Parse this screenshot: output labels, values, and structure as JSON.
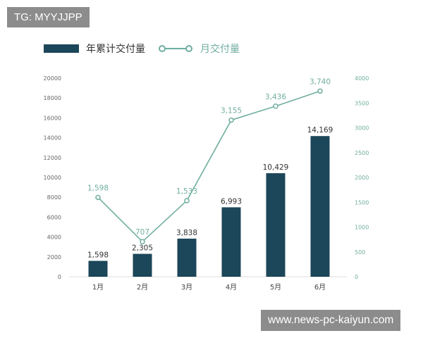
{
  "watermarks": {
    "top": "TG: MYYJJPP",
    "bottom": "www.news-pc-kaiyun.com"
  },
  "colors": {
    "bar": "#1c4659",
    "line": "#6fae9f",
    "axis_text": "#666666",
    "bar_label": "#333333"
  },
  "chart_data": {
    "type": "bar+line",
    "title": "",
    "categories": [
      "1月",
      "2月",
      "3月",
      "4月",
      "5月",
      "6月"
    ],
    "series": [
      {
        "name": "年累计交付量",
        "type": "bar",
        "axis": "left",
        "values": [
          1598,
          2305,
          3838,
          6993,
          10429,
          14169
        ],
        "labels": [
          "1,598",
          "2,305",
          "3,838",
          "6,993",
          "10,429",
          "14,169"
        ]
      },
      {
        "name": "月交付量",
        "type": "line",
        "axis": "right",
        "values": [
          1598,
          707,
          1533,
          3155,
          3436,
          3740
        ],
        "labels": [
          "1,598",
          "707",
          "1,533",
          "3,155",
          "3,436",
          "3,740"
        ]
      }
    ],
    "y_left": {
      "min": 0,
      "max": 20000,
      "ticks": [
        "0",
        "2000",
        "4000",
        "6000",
        "8000",
        "10000",
        "12000",
        "14000",
        "16000",
        "18000",
        "20000"
      ]
    },
    "y_right": {
      "min": 0,
      "max": 4000,
      "ticks": [
        "0",
        "500",
        "1000",
        "1500",
        "2000",
        "2500",
        "3000",
        "3500",
        "4000"
      ]
    },
    "legend_position": "top-left",
    "grid": false
  }
}
